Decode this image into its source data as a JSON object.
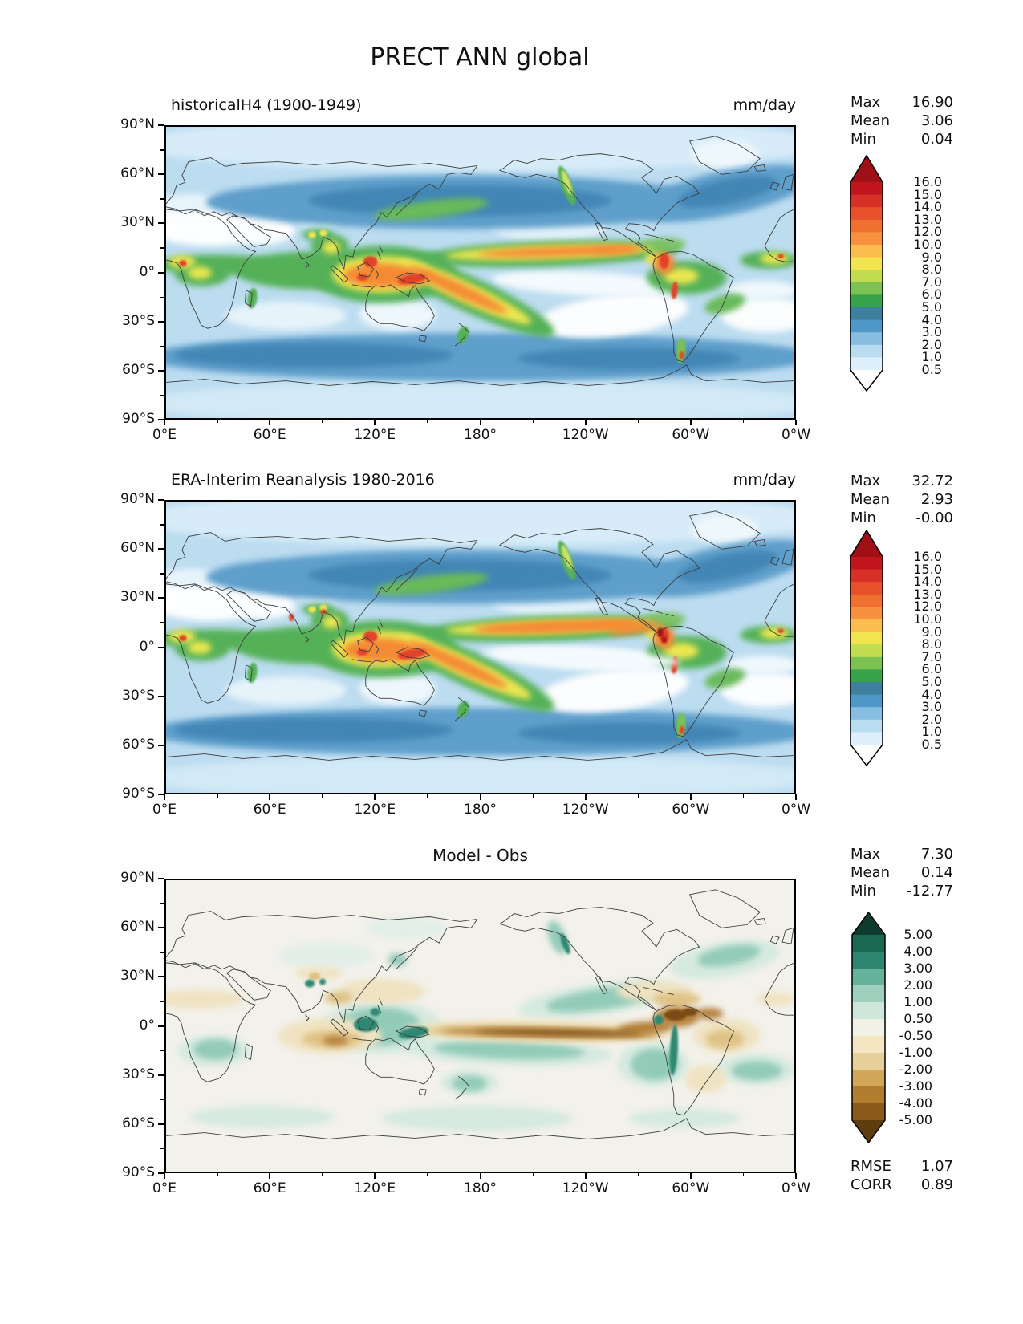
{
  "title": "PRECT ANN global",
  "panels": [
    {
      "title": "historicalH4 (1900-1949)",
      "units": "mm/day",
      "stats": [
        {
          "label": "Max",
          "value": "16.90"
        },
        {
          "label": "Mean",
          "value": "3.06"
        },
        {
          "label": "Min",
          "value": "0.04"
        }
      ]
    },
    {
      "title": "ERA-Interim Reanalysis 1980-2016",
      "units": "mm/day",
      "stats": [
        {
          "label": "Max",
          "value": "32.72"
        },
        {
          "label": "Mean",
          "value": "2.93"
        },
        {
          "label": "Min",
          "value": "-0.00"
        }
      ]
    },
    {
      "title": "Model - Obs",
      "stats": [
        {
          "label": "Max",
          "value": "7.30"
        },
        {
          "label": "Mean",
          "value": "0.14"
        },
        {
          "label": "Min",
          "value": "-12.77"
        }
      ],
      "extra": [
        {
          "label": "RMSE",
          "value": "1.07"
        },
        {
          "label": "CORR",
          "value": "0.89"
        }
      ]
    }
  ],
  "axes": {
    "x": [
      "0°E",
      "60°E",
      "120°E",
      "180°",
      "120°W",
      "60°W",
      "0°W"
    ],
    "y": [
      "90°N",
      "60°N",
      "30°N",
      "0°",
      "30°S",
      "60°S",
      "90°S"
    ]
  },
  "colorbars": {
    "precip": {
      "labels": [
        "16.0",
        "15.0",
        "14.0",
        "13.0",
        "12.0",
        "10.0",
        "9.0",
        "8.0",
        "7.0",
        "6.0",
        "5.0",
        "4.0",
        "3.0",
        "2.0",
        "1.0",
        "0.5"
      ],
      "colors": [
        "#9e1016",
        "#c0151d",
        "#d73027",
        "#e7512a",
        "#f07030",
        "#f79140",
        "#fdbc4e",
        "#f0e54f",
        "#c3dd51",
        "#7cc252",
        "#36a24a",
        "#3f7f9e",
        "#4f97c7",
        "#86bde0",
        "#b9dcf1",
        "#def0fa",
        "#ffffff"
      ]
    },
    "diff": {
      "labels": [
        "5.00",
        "4.00",
        "3.00",
        "2.00",
        "1.00",
        "0.50",
        "-0.50",
        "-1.00",
        "-2.00",
        "-3.00",
        "-4.00",
        "-5.00"
      ],
      "colors": [
        "#0d3b2d",
        "#186a52",
        "#2e8570",
        "#66b39c",
        "#9ed0bd",
        "#cfe7da",
        "#f1f1e6",
        "#f3e6c1",
        "#e7cf9a",
        "#d2a759",
        "#b17d2e",
        "#8a5a1a",
        "#5f3c0d"
      ]
    }
  },
  "chart_data": [
    {
      "type": "heatmap",
      "subtype": "filled_contour_map",
      "title": "historicalH4 (1900-1949)",
      "units": "mm/day",
      "x_ticks": [
        "0°E",
        "60°E",
        "120°E",
        "180°",
        "120°W",
        "60°W",
        "0°W"
      ],
      "y_ticks": [
        "90°N",
        "60°N",
        "30°N",
        "0°",
        "30°S",
        "60°S",
        "90°S"
      ],
      "lon_range_deg": [
        0,
        360
      ],
      "lat_range_deg": [
        -90,
        90
      ],
      "levels": [
        0.5,
        1,
        2,
        3,
        4,
        5,
        6,
        7,
        8,
        9,
        10,
        12,
        13,
        14,
        15,
        16
      ],
      "palette": "white-blue-green-yellow-orange-red, pointed over/under arrows",
      "stats": {
        "max": 16.9,
        "mean": 3.06,
        "min": 0.04
      },
      "features": [
        "ITCZ band 5-10N across Pacific and Atlantic in yellow/orange (~8-13 mm/day)",
        "Maritime continent / warm pool orange-red maximum (>12 mm/day)",
        "SPCZ diagonal band southeast of New Guinea",
        "Dry white subtropical zones: SE Pacific, S Atlantic, Sahara, Arabia",
        "Mid-latitude storm tracks 4-6 mm/day in steel blue",
        "Hot spots: Colombia, Peru Andes, southern Chile, Gulf of Guinea"
      ]
    },
    {
      "type": "heatmap",
      "subtype": "filled_contour_map",
      "title": "ERA-Interim Reanalysis 1980-2016",
      "units": "mm/day",
      "x_ticks": [
        "0°E",
        "60°E",
        "120°E",
        "180°",
        "120°W",
        "60°W",
        "0°W"
      ],
      "y_ticks": [
        "90°N",
        "60°N",
        "30°N",
        "0°",
        "30°S",
        "60°S",
        "90°S"
      ],
      "lon_range_deg": [
        0,
        360
      ],
      "lat_range_deg": [
        -90,
        90
      ],
      "levels": [
        0.5,
        1,
        2,
        3,
        4,
        5,
        6,
        7,
        8,
        9,
        10,
        12,
        13,
        14,
        15,
        16
      ],
      "palette": "white-blue-green-yellow-orange-red, pointed over/under arrows",
      "stats": {
        "max": 32.72,
        "mean": 2.93,
        "min": -0.0
      },
      "features": [
        "Narrower continuous orange ITCZ reaching dark-red maxima near Colombia",
        "Red spots over Western Ghats and Bangladesh",
        "Same overall pattern as model panel with stronger localized maxima"
      ]
    },
    {
      "type": "heatmap",
      "subtype": "filled_contour_map_difference",
      "title": "Model - Obs",
      "units": "mm/day",
      "x_ticks": [
        "0°E",
        "60°E",
        "120°E",
        "180°",
        "120°W",
        "60°W",
        "0°W"
      ],
      "y_ticks": [
        "90°N",
        "60°N",
        "30°N",
        "0°",
        "30°S",
        "60°S",
        "90°S"
      ],
      "lon_range_deg": [
        0,
        360
      ],
      "lat_range_deg": [
        -90,
        90
      ],
      "levels": [
        -5,
        -4,
        -3,
        -2,
        -1,
        -0.5,
        0.5,
        1,
        2,
        3,
        4,
        5
      ],
      "palette": "brown (negative) to teal (positive) diverging, pointed over/under arrows",
      "stats": {
        "max": 7.3,
        "mean": 0.14,
        "min": -12.77,
        "rmse": 1.07,
        "corr": 0.89
      },
      "features": [
        "Strong dry (brown) bias band just south of equator across Pacific to South America",
        "Dark brown deficit over Colombia/Venezuela, Caribbean and east Brazil",
        "Wet (teal) bias over Maritime Continent, Andes, NE Pacific and S-central Pacific",
        "Tan dry bias over tropical Indian Ocean, Sahel, Tibet margins"
      ]
    }
  ]
}
